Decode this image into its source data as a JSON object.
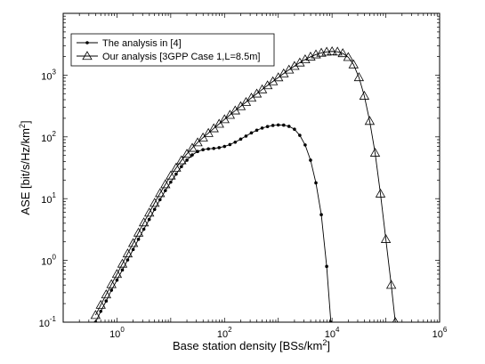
{
  "chart_data": {
    "type": "line",
    "title": "",
    "x_scale": "log",
    "y_scale": "log",
    "xlim": [
      0.1,
      1000000
    ],
    "ylim": [
      0.1,
      10000
    ],
    "grid": false,
    "legend_position": "top-left",
    "x_ticks": [
      {
        "value": 1,
        "base": "10",
        "exp": "0"
      },
      {
        "value": 100,
        "base": "10",
        "exp": "2"
      },
      {
        "value": 10000,
        "base": "10",
        "exp": "4"
      },
      {
        "value": 1000000,
        "base": "10",
        "exp": "6"
      }
    ],
    "y_ticks": [
      {
        "value": 0.1,
        "base": "10",
        "exp": "-1"
      },
      {
        "value": 1,
        "base": "10",
        "exp": "0"
      },
      {
        "value": 10,
        "base": "10",
        "exp": "1"
      },
      {
        "value": 100,
        "base": "10",
        "exp": "2"
      },
      {
        "value": 1000,
        "base": "10",
        "exp": "3"
      }
    ],
    "xlabel": {
      "main": "Base station density [BSs/km",
      "sup": "2",
      "tail": "]"
    },
    "ylabel": {
      "main": "ASE [bit/s/Hz/km",
      "sup": "2",
      "tail": "]"
    },
    "series": [
      {
        "name": "The analysis in [4]",
        "marker": "dot",
        "color": "#000000",
        "points": [
          [
            0.4,
            0.1
          ],
          [
            0.5,
            0.15
          ],
          [
            0.63,
            0.22
          ],
          [
            0.79,
            0.33
          ],
          [
            1,
            0.48
          ],
          [
            1.26,
            0.7
          ],
          [
            1.58,
            1.02
          ],
          [
            2,
            1.5
          ],
          [
            2.51,
            2.2
          ],
          [
            3.16,
            3.2
          ],
          [
            3.98,
            4.6
          ],
          [
            5.01,
            6.7
          ],
          [
            6.31,
            9.6
          ],
          [
            7.94,
            13.5
          ],
          [
            10,
            18.5
          ],
          [
            12.6,
            25
          ],
          [
            15.8,
            33
          ],
          [
            20,
            42
          ],
          [
            25.1,
            51
          ],
          [
            31.6,
            58
          ],
          [
            39.8,
            62
          ],
          [
            50.1,
            64
          ],
          [
            63.1,
            65
          ],
          [
            79.4,
            67
          ],
          [
            100,
            70
          ],
          [
            126,
            75
          ],
          [
            158,
            82
          ],
          [
            200,
            92
          ],
          [
            251,
            103
          ],
          [
            316,
            116
          ],
          [
            398,
            128
          ],
          [
            501,
            139
          ],
          [
            631,
            147
          ],
          [
            794,
            153
          ],
          [
            1000,
            156
          ],
          [
            1260,
            155
          ],
          [
            1580,
            148
          ],
          [
            2000,
            133
          ],
          [
            2510,
            106
          ],
          [
            3160,
            74
          ],
          [
            3980,
            42
          ],
          [
            5010,
            18
          ],
          [
            6310,
            5.5
          ],
          [
            7940,
            0.8
          ],
          [
            9500,
            0.1
          ]
        ]
      },
      {
        "name": "Our analysis [3GPP Case 1,L=8.5m]",
        "marker": "triangle",
        "color": "#000000",
        "points": [
          [
            0.4,
            0.13
          ],
          [
            0.5,
            0.19
          ],
          [
            0.63,
            0.28
          ],
          [
            0.79,
            0.41
          ],
          [
            1,
            0.6
          ],
          [
            1.26,
            0.88
          ],
          [
            1.58,
            1.29
          ],
          [
            2,
            1.9
          ],
          [
            2.51,
            2.8
          ],
          [
            3.16,
            4.1
          ],
          [
            3.98,
            5.9
          ],
          [
            5.01,
            8.5
          ],
          [
            6.31,
            12.2
          ],
          [
            7.94,
            17
          ],
          [
            10,
            23.5
          ],
          [
            12.6,
            31.5
          ],
          [
            15.8,
            41.5
          ],
          [
            20,
            53
          ],
          [
            25.1,
            66
          ],
          [
            31.6,
            81
          ],
          [
            39.8,
            97
          ],
          [
            50.1,
            115
          ],
          [
            63.1,
            137
          ],
          [
            79.4,
            162
          ],
          [
            100,
            192
          ],
          [
            126,
            226
          ],
          [
            158,
            266
          ],
          [
            200,
            312
          ],
          [
            251,
            365
          ],
          [
            316,
            428
          ],
          [
            398,
            500
          ],
          [
            501,
            585
          ],
          [
            631,
            680
          ],
          [
            794,
            790
          ],
          [
            1000,
            915
          ],
          [
            1260,
            1060
          ],
          [
            1580,
            1220
          ],
          [
            2000,
            1400
          ],
          [
            2510,
            1590
          ],
          [
            3160,
            1790
          ],
          [
            3980,
            1980
          ],
          [
            5010,
            2150
          ],
          [
            6310,
            2290
          ],
          [
            7940,
            2380
          ],
          [
            10000,
            2420
          ],
          [
            12600,
            2390
          ],
          [
            15800,
            2250
          ],
          [
            20000,
            1950
          ],
          [
            25100,
            1480
          ],
          [
            31600,
            920
          ],
          [
            39800,
            460
          ],
          [
            50100,
            180
          ],
          [
            63100,
            55
          ],
          [
            79400,
            12
          ],
          [
            100000,
            2.2
          ],
          [
            126000,
            0.4
          ],
          [
            150000,
            0.1
          ]
        ]
      }
    ]
  }
}
